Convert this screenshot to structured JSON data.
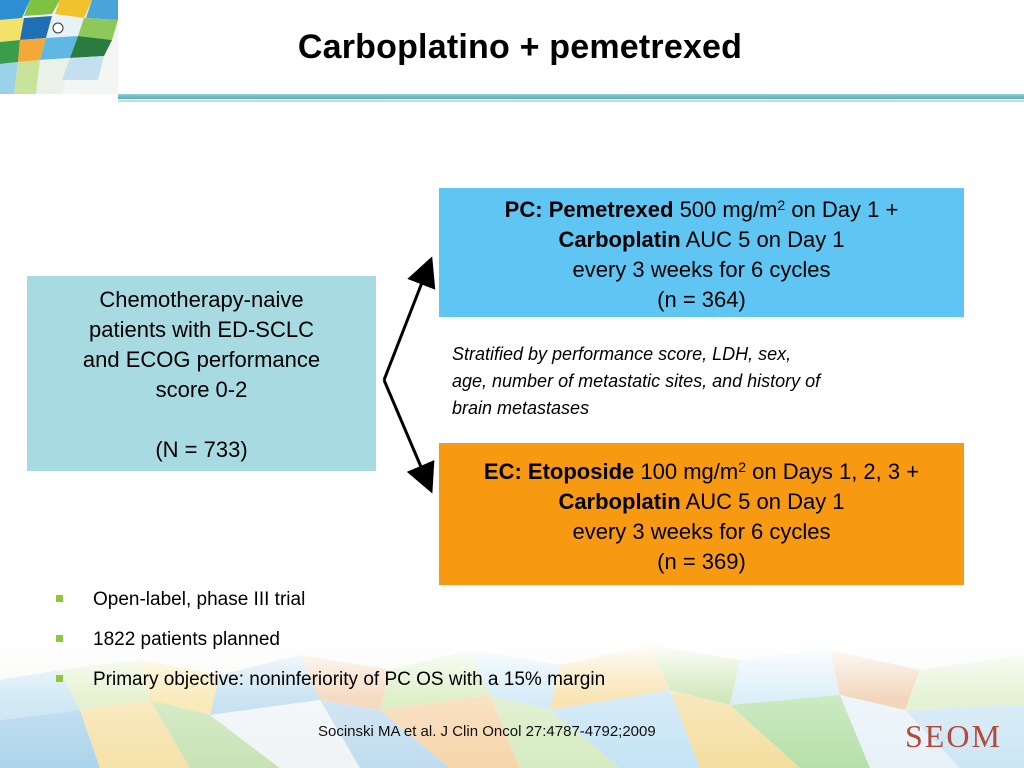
{
  "title": "Carboplatino + pemetrexed",
  "left_box": {
    "line1": "Chemotherapy-naive",
    "line2": "patients with ED-SCLC",
    "line3": "and ECOG performance",
    "line4": "score 0-2",
    "n": "(N = 733)"
  },
  "pc_box": {
    "arm": "PC:",
    "drug1": "Pemetrexed",
    "dose1": "500 mg/m",
    "sup": "2",
    "day1": "on Day 1 +",
    "drug2": "Carboplatin",
    "dose2": "AUC 5 on Day 1",
    "schedule": "every 3 weeks for 6 cycles",
    "n": "(n = 364)",
    "color": "#5fc6f3"
  },
  "ec_box": {
    "arm": "EC:",
    "drug1": "Etoposide",
    "dose1": "100 mg/m",
    "sup": "2",
    "day1": "on Days 1, 2, 3 +",
    "drug2": "Carboplatin",
    "dose2": "AUC 5 on Day 1",
    "schedule": "every 3 weeks for 6 cycles",
    "n": "(n = 369)",
    "color": "#f79a12"
  },
  "stratification": {
    "line1": "Stratified by performance score, LDH, sex,",
    "line2": "age, number of metastatic sites, and history of",
    "line3": "brain metastases"
  },
  "bullets": [
    "Open-label, phase III trial",
    "1822 patients planned",
    "Primary objective: noninferiority of PC OS with a 15% margin"
  ],
  "citation": "Socinski MA et al. J Clin Oncol 27:4787-4792;2009",
  "logo": "SEOM"
}
